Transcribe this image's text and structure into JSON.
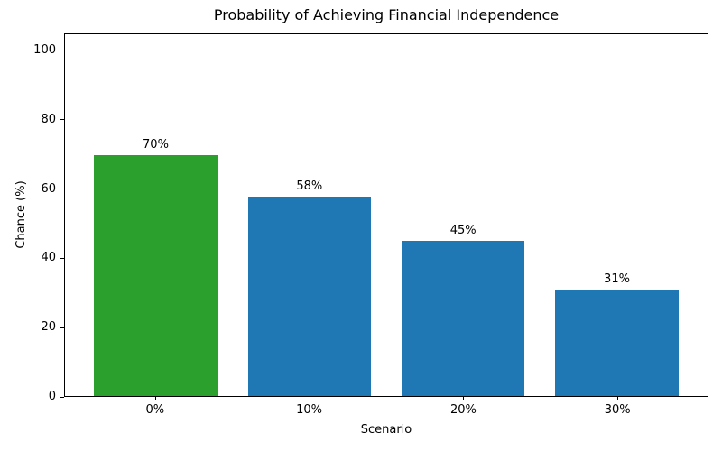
{
  "chart_data": {
    "type": "bar",
    "title": "Probability of Achieving Financial Independence",
    "xlabel": "Scenario",
    "ylabel": "Chance (%)",
    "categories": [
      "0%",
      "10%",
      "20%",
      "30%"
    ],
    "values": [
      70,
      58,
      45,
      31
    ],
    "bar_labels": [
      "70%",
      "58%",
      "45%",
      "31%"
    ],
    "bar_colors": [
      "#2ca02c",
      "#1f77b4",
      "#1f77b4",
      "#1f77b4"
    ],
    "yticks": [
      0,
      20,
      40,
      60,
      80,
      100
    ],
    "ylim": [
      0,
      105
    ],
    "xlim": [
      -0.59,
      3.59
    ],
    "bar_width": 0.8,
    "grid": false,
    "legend_position": "none",
    "text_color": "#000000",
    "spine_color": "#000000",
    "background_color": "#ffffff"
  }
}
